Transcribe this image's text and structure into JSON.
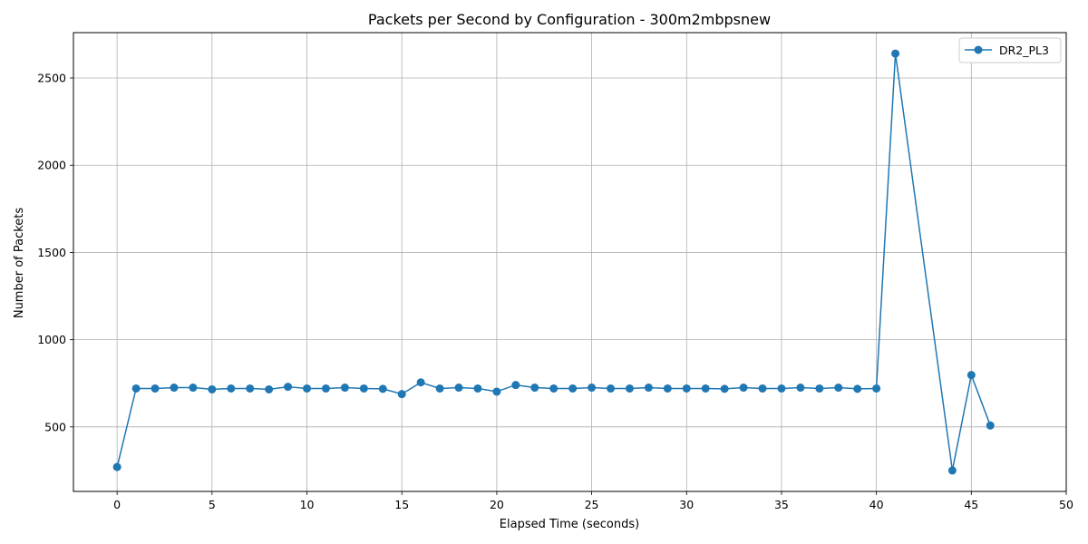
{
  "chart_data": {
    "type": "line",
    "title": "Packets per Second by Configuration - 300m2mbpsnew",
    "xlabel": "Elapsed Time (seconds)",
    "ylabel": "Number of Packets",
    "xlim": [
      -2.3,
      50
    ],
    "ylim": [
      130,
      2760
    ],
    "x_ticks": [
      0,
      5,
      10,
      15,
      20,
      25,
      30,
      35,
      40,
      45,
      50
    ],
    "y_ticks": [
      500,
      1000,
      1500,
      2000,
      2500
    ],
    "grid": true,
    "legend_position": "top-right",
    "color": "#1f77b4",
    "series": [
      {
        "name": "DR2_PL3",
        "x": [
          0,
          1,
          2,
          3,
          4,
          5,
          6,
          7,
          8,
          9,
          10,
          11,
          12,
          13,
          14,
          15,
          16,
          17,
          18,
          19,
          20,
          21,
          22,
          23,
          24,
          25,
          26,
          27,
          28,
          29,
          30,
          31,
          32,
          33,
          34,
          35,
          36,
          37,
          38,
          39,
          40,
          41,
          44,
          45,
          46
        ],
        "y": [
          270,
          720,
          720,
          725,
          725,
          715,
          720,
          720,
          715,
          730,
          720,
          720,
          725,
          720,
          718,
          688,
          755,
          720,
          725,
          720,
          702,
          740,
          725,
          720,
          720,
          725,
          720,
          720,
          725,
          720,
          720,
          720,
          718,
          725,
          720,
          720,
          725,
          720,
          725,
          718,
          720,
          2640,
          250,
          797,
          508
        ]
      }
    ]
  }
}
